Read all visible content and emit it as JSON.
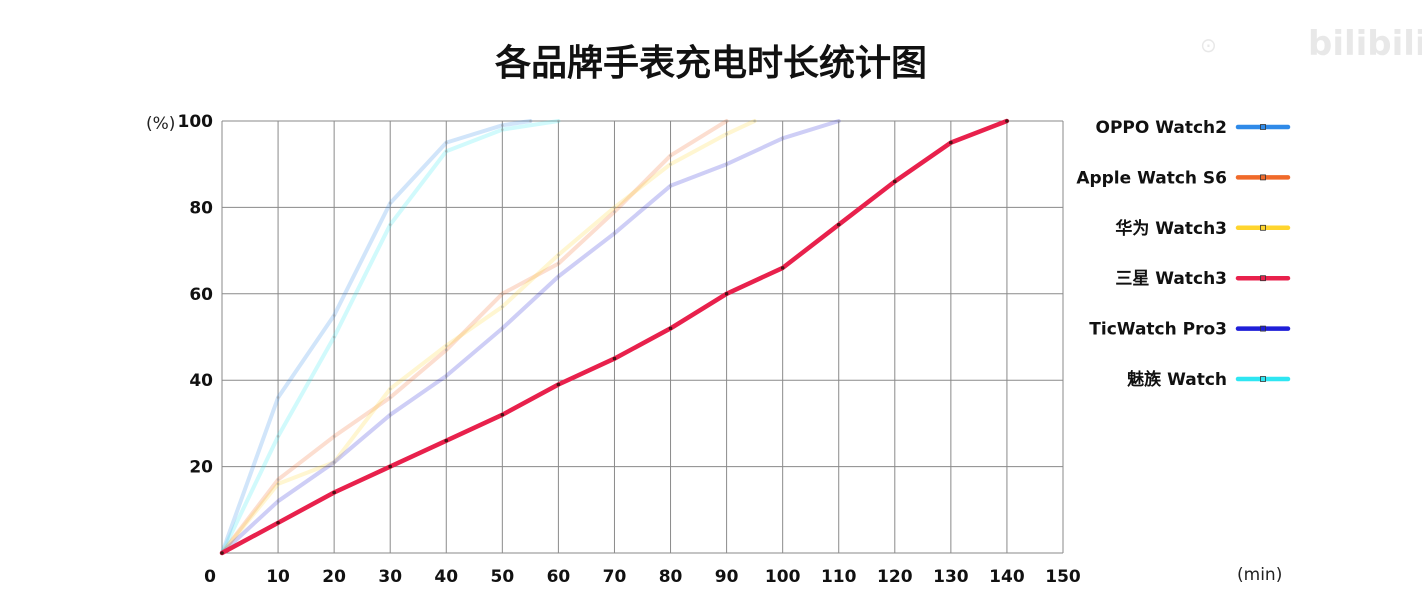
{
  "chart_data": {
    "type": "line",
    "title": "各品牌手表充电时长统计图",
    "xlabel": "(min)",
    "ylabel": "(%)",
    "xlim": [
      0,
      150
    ],
    "ylim": [
      0,
      100
    ],
    "x_ticks": [
      0,
      10,
      20,
      30,
      40,
      50,
      60,
      70,
      80,
      90,
      100,
      110,
      120,
      130,
      140,
      150
    ],
    "y_ticks": [
      20,
      40,
      60,
      80,
      100
    ],
    "grid": true,
    "legend_position": "right",
    "series": [
      {
        "name": "OPPO Watch2",
        "color": "#2f8ae8",
        "faded": true,
        "points": [
          [
            0,
            0
          ],
          [
            10,
            36
          ],
          [
            20,
            55
          ],
          [
            30,
            81
          ],
          [
            40,
            95
          ],
          [
            50,
            99
          ],
          [
            55,
            100
          ]
        ]
      },
      {
        "name": "Apple Watch S6",
        "color": "#f06a2a",
        "faded": true,
        "points": [
          [
            0,
            0
          ],
          [
            10,
            17
          ],
          [
            20,
            27
          ],
          [
            30,
            36
          ],
          [
            40,
            47
          ],
          [
            50,
            60
          ],
          [
            60,
            67
          ],
          [
            70,
            79
          ],
          [
            80,
            92
          ],
          [
            90,
            100
          ]
        ]
      },
      {
        "name": "华为 Watch3",
        "color": "#ffd52e",
        "faded": true,
        "points": [
          [
            0,
            0
          ],
          [
            10,
            16
          ],
          [
            20,
            21
          ],
          [
            30,
            38
          ],
          [
            40,
            48
          ],
          [
            50,
            57
          ],
          [
            60,
            69
          ],
          [
            70,
            80
          ],
          [
            80,
            90
          ],
          [
            90,
            97
          ],
          [
            95,
            100
          ]
        ]
      },
      {
        "name": "三星 Watch3",
        "color": "#e8214c",
        "faded": false,
        "points": [
          [
            0,
            0
          ],
          [
            10,
            7
          ],
          [
            20,
            14
          ],
          [
            30,
            20
          ],
          [
            40,
            26
          ],
          [
            50,
            32
          ],
          [
            60,
            39
          ],
          [
            70,
            45
          ],
          [
            80,
            52
          ],
          [
            90,
            60
          ],
          [
            100,
            66
          ],
          [
            110,
            76
          ],
          [
            120,
            86
          ],
          [
            130,
            95
          ],
          [
            140,
            100
          ]
        ]
      },
      {
        "name": "TicWatch Pro3",
        "color": "#1f1fd8",
        "faded": true,
        "points": [
          [
            0,
            0
          ],
          [
            10,
            12
          ],
          [
            20,
            21
          ],
          [
            30,
            32
          ],
          [
            40,
            41
          ],
          [
            50,
            52
          ],
          [
            60,
            64
          ],
          [
            70,
            74
          ],
          [
            80,
            85
          ],
          [
            90,
            90
          ],
          [
            100,
            96
          ],
          [
            110,
            100
          ]
        ]
      },
      {
        "name": "魅族 Watch",
        "color": "#2fe6f2",
        "faded": true,
        "points": [
          [
            0,
            0
          ],
          [
            10,
            27
          ],
          [
            20,
            50
          ],
          [
            30,
            76
          ],
          [
            40,
            93
          ],
          [
            50,
            98
          ],
          [
            60,
            100
          ]
        ]
      }
    ]
  },
  "watermark": {
    "text": "bilibili"
  }
}
